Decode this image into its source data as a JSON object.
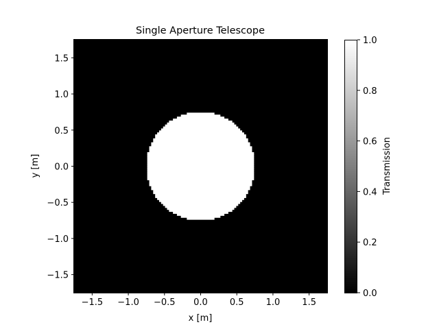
{
  "chart_data": {
    "type": "heatmap",
    "title": "Single Aperture Telescope",
    "xlabel": "x [m]",
    "ylabel": "y [m]",
    "xlim": [
      -1.75,
      1.75
    ],
    "ylim": [
      -1.75,
      1.75
    ],
    "xticks": [
      -1.5,
      -1.0,
      -0.5,
      0.0,
      0.5,
      1.0,
      1.5
    ],
    "yticks": [
      -1.5,
      -1.0,
      -0.5,
      0.0,
      0.5,
      1.0,
      1.5
    ],
    "xtick_labels": [
      "−1.5",
      "−1.0",
      "−0.5",
      "0.0",
      "0.5",
      "1.0",
      "1.5"
    ],
    "ytick_labels": [
      "−1.5",
      "−1.0",
      "−0.5",
      "0.0",
      "0.5",
      "1.0",
      "1.5"
    ],
    "aperture": {
      "shape": "circle",
      "center": [
        0.0,
        0.0
      ],
      "radius": 0.75,
      "transmission_inside": 1.0,
      "transmission_outside": 0.0
    },
    "grid_samples": 128,
    "colormap": "gray",
    "colors": {
      "low": "#000000",
      "high": "#ffffff"
    },
    "colorbar": {
      "label": "Transmission",
      "range": [
        0.0,
        1.0
      ],
      "ticks": [
        0.0,
        0.2,
        0.4,
        0.6,
        0.8,
        1.0
      ],
      "tick_labels": [
        "0.0",
        "0.2",
        "0.4",
        "0.6",
        "0.8",
        "1.0"
      ],
      "placement": "right"
    },
    "grid": false
  }
}
